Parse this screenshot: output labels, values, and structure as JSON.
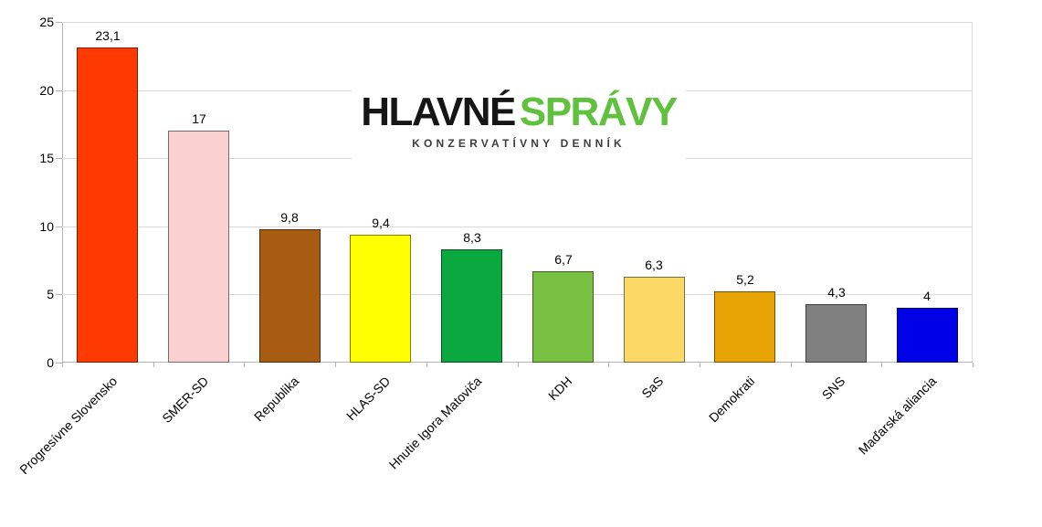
{
  "logo": {
    "part1": "HLAVNÉ",
    "part2": "SPRÁVY",
    "subtitle": "KONZERVATÍVNY DENNÍK",
    "part1_color": "#161616",
    "part2_color": "#5FC13D",
    "subtitle_color": "#3d3d3d"
  },
  "chart_data": {
    "type": "bar",
    "title": "",
    "xlabel": "",
    "ylabel": "",
    "categories": [
      "Progresívne Slovensko",
      "SMER-SD",
      "Republika",
      "HLAS-SD",
      "Hnutie Igora Matoviča",
      "KDH",
      "SaS",
      "Demokrati",
      "SNS",
      "Maďarská aliancia"
    ],
    "values": [
      23.1,
      17,
      9.8,
      9.4,
      8.3,
      6.7,
      6.3,
      5.2,
      4.3,
      4
    ],
    "value_labels": [
      "23,1",
      "17",
      "9,8",
      "9,4",
      "8,3",
      "6,7",
      "6,3",
      "5,2",
      "4,3",
      "4"
    ],
    "bar_colors": [
      "#FF3A00",
      "#FAD0D0",
      "#A85C12",
      "#FFFF00",
      "#0AA83F",
      "#79C142",
      "#FCD967",
      "#E6A303",
      "#808080",
      "#0000E6"
    ],
    "ylim": [
      0,
      25
    ],
    "yticks": [
      0,
      5,
      10,
      15,
      20,
      25
    ],
    "ytick_labels": [
      "0",
      "5",
      "10",
      "15",
      "20",
      "25"
    ],
    "grid": true,
    "legend": false,
    "gridline_color": "#d9d9d9",
    "axis_color": "#b3b3b3",
    "label_color": "#000000"
  }
}
